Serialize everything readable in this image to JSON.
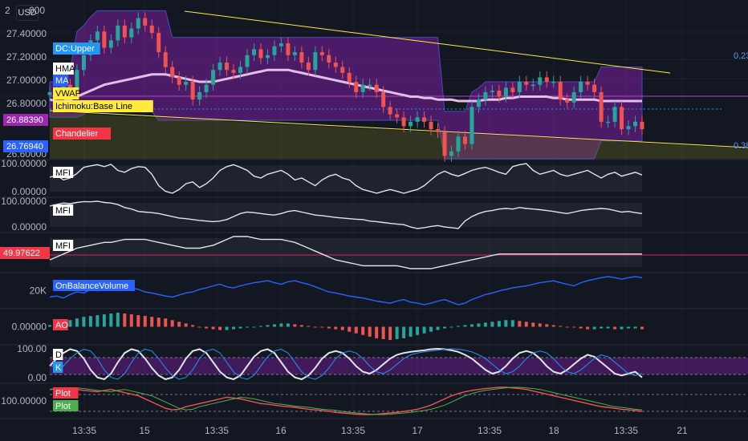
{
  "currency": "USD",
  "chart_data": {
    "type": "line",
    "x_tick_labels": [
      "13:35",
      "15",
      "13:35",
      "16",
      "13:35",
      "17",
      "13:35",
      "18",
      "13:35",
      "21"
    ],
    "price_axis_labels": [
      "2",
      "27.40000",
      "27.20000",
      "27.00000",
      "26.80000",
      "26.60000"
    ],
    "price_axis_top_suffix": "000",
    "ylim": [
      26.6,
      27.64
    ],
    "price_tags": [
      {
        "value": "26.88390",
        "color": "#9c27b0"
      },
      {
        "value": "26.76940",
        "color": "#2962ff"
      }
    ],
    "fib_labels": [
      "0.23",
      "0.38"
    ],
    "overlay_legend": [
      {
        "label": "DC:Upper",
        "bg": "#2196f3",
        "fg": "#ffffff"
      },
      {
        "label": "HMA",
        "bg": "#ffffff",
        "fg": "#000000"
      },
      {
        "label": "MA",
        "bg": "#2962ff",
        "fg": "#ffffff"
      },
      {
        "label": "VWAP",
        "bg": "#ffeb3b",
        "fg": "#000000"
      },
      {
        "label": "Ichimoku:Base Line",
        "bg": "#ffeb3b",
        "fg": "#000000"
      },
      {
        "label": "Chandelier",
        "bg": "#f23645",
        "fg": "#ffffff"
      }
    ],
    "main_close": [
      27.05,
      27.05,
      27.1,
      27.08,
      27.2,
      27.3,
      27.4,
      27.46,
      27.35,
      27.4,
      27.5,
      27.42,
      27.48,
      27.55,
      27.5,
      27.45,
      27.32,
      27.22,
      27.15,
      27.1,
      27.12,
      27.0,
      27.05,
      27.1,
      27.2,
      27.25,
      27.2,
      27.18,
      27.22,
      27.3,
      27.34,
      27.28,
      27.3,
      27.36,
      27.38,
      27.3,
      27.32,
      27.25,
      27.2,
      27.32,
      27.3,
      27.25,
      27.22,
      27.18,
      27.12,
      27.05,
      27.1,
      27.1,
      27.05,
      26.95,
      26.9,
      26.88,
      26.82,
      26.85,
      26.88,
      26.85,
      26.8,
      26.78,
      26.62,
      26.65,
      26.75,
      26.7,
      26.95,
      27.0,
      27.05,
      27.06,
      27.02,
      27.08,
      27.05,
      27.12,
      27.1,
      27.1,
      27.15,
      27.12,
      27.12,
      27.0,
      26.98,
      27.05,
      27.12,
      27.1,
      27.05,
      26.85,
      26.85,
      26.95,
      26.8,
      26.82,
      26.85,
      26.8
    ],
    "ma_line": [
      27.0,
      26.99,
      26.99,
      27.0,
      27.02,
      27.04,
      27.06,
      27.08,
      27.1,
      27.11,
      27.12,
      27.13,
      27.14,
      27.15,
      27.16,
      27.17,
      27.17,
      27.17,
      27.16,
      27.15,
      27.14,
      27.13,
      27.12,
      27.12,
      27.12,
      27.13,
      27.14,
      27.15,
      27.16,
      27.17,
      27.18,
      27.19,
      27.2,
      27.2,
      27.2,
      27.2,
      27.19,
      27.18,
      27.17,
      27.16,
      27.15,
      27.14,
      27.13,
      27.12,
      27.11,
      27.1,
      27.09,
      27.08,
      27.07,
      27.06,
      27.05,
      27.04,
      27.03,
      27.02,
      27.02,
      27.01,
      27.01,
      27.0,
      27.0,
      27.0,
      26.99,
      26.99,
      26.99,
      26.99,
      27.0,
      27.0,
      27.0,
      27.01,
      27.01,
      27.02,
      27.02,
      27.02,
      27.02,
      27.02,
      27.01,
      27.01,
      27.0,
      27.0,
      27.0,
      27.0,
      27.0,
      26.99,
      26.99,
      26.99,
      26.99,
      26.99,
      26.99,
      26.99
    ],
    "dc_upper": [
      27.12,
      27.12,
      27.2,
      27.2,
      27.46,
      27.5,
      27.56,
      27.6,
      27.6,
      27.6,
      27.6,
      27.6,
      27.6,
      27.6,
      27.6,
      27.6,
      27.6,
      27.6,
      27.42,
      27.42,
      27.42,
      27.42,
      27.42,
      27.42,
      27.42,
      27.42,
      27.42,
      27.42,
      27.42,
      27.42,
      27.42,
      27.42,
      27.42,
      27.42,
      27.42,
      27.42,
      27.42,
      27.42,
      27.42,
      27.42,
      27.42,
      27.42,
      27.42,
      27.42,
      27.42,
      27.42,
      27.42,
      27.42,
      27.42,
      27.42,
      27.42,
      27.42,
      27.42,
      27.42,
      27.42,
      27.42,
      27.42,
      27.42,
      26.92,
      26.92,
      26.92,
      26.92,
      27.05,
      27.08,
      27.12,
      27.12,
      27.12,
      27.12,
      27.12,
      27.12,
      27.12,
      27.12,
      27.12,
      27.12,
      27.12,
      27.12,
      27.12,
      27.12,
      27.12,
      27.12,
      27.12,
      27.22,
      27.22,
      27.22,
      27.22,
      27.22,
      27.22,
      27.22
    ],
    "dc_lower": [
      26.88,
      26.88,
      26.88,
      26.88,
      26.88,
      26.9,
      26.95,
      26.95,
      26.95,
      26.95,
      26.95,
      26.95,
      26.95,
      26.95,
      26.95,
      26.92,
      26.86,
      26.86,
      26.86,
      26.86,
      26.86,
      26.86,
      26.86,
      26.86,
      26.86,
      26.86,
      26.86,
      26.86,
      26.86,
      26.86,
      26.86,
      26.86,
      26.86,
      26.86,
      26.86,
      26.86,
      26.86,
      26.86,
      26.86,
      26.86,
      26.86,
      26.86,
      26.86,
      26.86,
      26.86,
      26.86,
      26.86,
      26.86,
      26.86,
      26.86,
      26.86,
      26.86,
      26.86,
      26.86,
      26.86,
      26.86,
      26.86,
      26.86,
      26.6,
      26.6,
      26.6,
      26.6,
      26.6,
      26.6,
      26.6,
      26.6,
      26.6,
      26.6,
      26.6,
      26.6,
      26.6,
      26.6,
      26.6,
      26.6,
      26.6,
      26.6,
      26.6,
      26.6,
      26.6,
      26.6,
      26.6,
      26.72,
      26.72,
      26.72,
      26.72,
      26.72,
      26.72,
      26.72
    ],
    "indicator_panes": [
      {
        "name": "MFI",
        "labels": [
          "100.00000",
          "0.00000"
        ],
        "legend": [
          {
            "label": "MFI",
            "bg": "#ffffff",
            "fg": "#000000"
          }
        ],
        "values": [
          62,
          68,
          55,
          60,
          72,
          88,
          92,
          95,
          90,
          96,
          80,
          75,
          85,
          90,
          88,
          70,
          40,
          25,
          20,
          30,
          45,
          50,
          35,
          45,
          60,
          80,
          90,
          95,
          88,
          80,
          65,
          60,
          70,
          75,
          80,
          70,
          55,
          60,
          50,
          40,
          55,
          65,
          70,
          60,
          55,
          40,
          30,
          25,
          20,
          25,
          30,
          25,
          20,
          25,
          30,
          40,
          55,
          70,
          78,
          70,
          65,
          72,
          80,
          85,
          88,
          82,
          75,
          70,
          90,
          95,
          98,
          80,
          70,
          75,
          80,
          70,
          65,
          70,
          75,
          80,
          70,
          60,
          70,
          75,
          65,
          70,
          75,
          68
        ]
      },
      {
        "name": "MFI",
        "labels": [
          "100.00000",
          "0.00000"
        ],
        "legend": [
          {
            "label": "MFI",
            "bg": "#ffffff",
            "fg": "#000000"
          }
        ],
        "values": [
          80,
          85,
          90,
          88,
          92,
          95,
          94,
          96,
          92,
          90,
          85,
          75,
          70,
          62,
          60,
          58,
          55,
          50,
          45,
          40,
          38,
          35,
          32,
          30,
          28,
          30,
          35,
          45,
          55,
          60,
          58,
          55,
          52,
          50,
          55,
          62,
          65,
          60,
          55,
          50,
          48,
          45,
          42,
          40,
          38,
          36,
          35,
          30,
          28,
          25,
          22,
          20,
          18,
          10,
          5,
          8,
          12,
          15,
          10,
          8,
          5,
          30,
          45,
          55,
          62,
          65,
          70,
          72,
          70,
          75,
          72,
          70,
          68,
          65,
          62,
          58,
          55,
          60,
          65,
          68,
          70,
          72,
          70,
          65,
          60,
          62,
          58,
          55
        ]
      },
      {
        "name": "MFI",
        "labels": [
          "49.97622"
        ],
        "legend": [
          {
            "label": "MFI",
            "bg": "#ffffff",
            "fg": "#000000"
          }
        ],
        "values": [
          46,
          48,
          50,
          52,
          54,
          55,
          56,
          57,
          58,
          58,
          59,
          60,
          60,
          60,
          60,
          59,
          58,
          57,
          56,
          55,
          54,
          54,
          54,
          55,
          56,
          58,
          60,
          62,
          62,
          62,
          61,
          60,
          60,
          60,
          60,
          59,
          58,
          56,
          54,
          52,
          50,
          48,
          46,
          45,
          44,
          43,
          42,
          42,
          42,
          42,
          42,
          42,
          41,
          40,
          40,
          40,
          40,
          41,
          42,
          43,
          44,
          45,
          46,
          47,
          48,
          49,
          50,
          50,
          50,
          50,
          50,
          50,
          50,
          50,
          50,
          50,
          50,
          50,
          50,
          50,
          50,
          50,
          50,
          50,
          50,
          50,
          50,
          50
        ]
      },
      {
        "name": "OnBalanceVolume",
        "labels": [
          "20K"
        ],
        "legend": [
          {
            "label": "OnBalanceVolume",
            "bg": "#2962ff",
            "fg": "#ffffff"
          }
        ],
        "values": [
          20,
          22,
          18,
          25,
          30,
          28,
          35,
          32,
          38,
          36,
          40,
          42,
          38,
          35,
          30,
          28,
          25,
          22,
          20,
          24,
          28,
          30,
          35,
          38,
          42,
          45,
          40,
          38,
          42,
          45,
          48,
          50,
          52,
          48,
          45,
          50,
          52,
          48,
          45,
          40,
          35,
          30,
          28,
          25,
          22,
          20,
          18,
          15,
          12,
          10,
          8,
          12,
          15,
          10,
          8,
          5,
          8,
          12,
          15,
          10,
          5,
          8,
          15,
          20,
          25,
          28,
          32,
          35,
          38,
          40,
          42,
          45,
          48,
          50,
          52,
          48,
          45,
          42,
          48,
          52,
          55,
          58,
          60,
          58,
          55,
          58,
          60,
          58
        ]
      },
      {
        "name": "AO",
        "labels": [
          "0.00000"
        ],
        "legend": [
          {
            "label": "AO",
            "bg": "#f23645",
            "fg": "#ffffff"
          }
        ],
        "values": [
          0.02,
          0.04,
          0.06,
          0.08,
          0.1,
          0.12,
          0.13,
          0.14,
          0.15,
          0.16,
          0.17,
          0.16,
          0.15,
          0.14,
          0.13,
          0.12,
          0.11,
          0.1,
          0.08,
          0.06,
          0.04,
          0.02,
          0.0,
          -0.02,
          -0.03,
          -0.04,
          -0.04,
          -0.03,
          -0.02,
          -0.01,
          0.0,
          0.01,
          0.02,
          0.03,
          0.04,
          0.04,
          0.03,
          0.02,
          0.01,
          0.0,
          -0.01,
          -0.02,
          -0.03,
          -0.04,
          -0.06,
          -0.08,
          -0.1,
          -0.12,
          -0.14,
          -0.15,
          -0.16,
          -0.15,
          -0.14,
          -0.12,
          -0.1,
          -0.08,
          -0.06,
          -0.04,
          -0.02,
          0.0,
          0.01,
          0.02,
          0.03,
          0.04,
          0.05,
          0.06,
          0.07,
          0.08,
          0.08,
          0.07,
          0.06,
          0.05,
          0.04,
          0.03,
          0.02,
          0.01,
          0.0,
          -0.01,
          -0.02,
          -0.03,
          -0.03,
          -0.02,
          -0.02,
          -0.03,
          -0.03,
          -0.02,
          -0.02,
          -0.03
        ]
      },
      {
        "name": "Stoch",
        "labels": [
          "100.00",
          "0.00"
        ],
        "legend": [
          {
            "label": "D",
            "bg": "#ffffff",
            "fg": "#000000"
          },
          {
            "label": "K",
            "bg": "#2196f3",
            "fg": "#ffffff"
          }
        ],
        "values": [
          50,
          70,
          85,
          95,
          90,
          70,
          40,
          20,
          15,
          30,
          60,
          85,
          95,
          90,
          70,
          45,
          25,
          15,
          20,
          40,
          70,
          90,
          95,
          85,
          60,
          35,
          20,
          15,
          25,
          50,
          75,
          90,
          95,
          85,
          60,
          35,
          20,
          15,
          25,
          45,
          70,
          85,
          90,
          85,
          70,
          50,
          35,
          30,
          40,
          55,
          70,
          80,
          85,
          88,
          90,
          92,
          95,
          96,
          95,
          92,
          88,
          80,
          70,
          55,
          40,
          30,
          35,
          50,
          70,
          85,
          90,
          85,
          70,
          50,
          35,
          30,
          40,
          55,
          70,
          80,
          75,
          60,
          45,
          30,
          25,
          30,
          35,
          20
        ]
      },
      {
        "name": "Plot",
        "labels": [
          "100.00000"
        ],
        "legend": [
          {
            "label": "Plot",
            "bg": "#f23645",
            "fg": "#ffffff"
          },
          {
            "label": "Plot",
            "bg": "#4caf50",
            "fg": "#ffffff"
          }
        ],
        "values": [
          85,
          88,
          90,
          88,
          85,
          82,
          80,
          78,
          82,
          85,
          80,
          75,
          70,
          65,
          55,
          45,
          35,
          25,
          20,
          22,
          30,
          35,
          40,
          45,
          50,
          55,
          60,
          58,
          55,
          50,
          45,
          40,
          38,
          35,
          32,
          30,
          28,
          25,
          22,
          20,
          18,
          15,
          12,
          10,
          8,
          6,
          5,
          5,
          6,
          8,
          10,
          12,
          15,
          18,
          22,
          28,
          35,
          45,
          55,
          65,
          72,
          78,
          82,
          85,
          88,
          90,
          92,
          92,
          90,
          88,
          85,
          80,
          75,
          70,
          65,
          60,
          55,
          50,
          45,
          40,
          35,
          30,
          28,
          25,
          22,
          20,
          18,
          15
        ]
      }
    ]
  }
}
